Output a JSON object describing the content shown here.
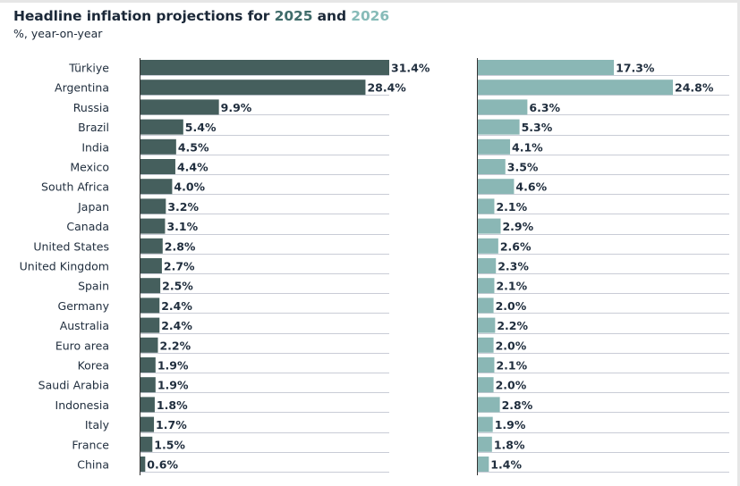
{
  "title": {
    "part1": "Headline inflation projections for ",
    "year1": "2025",
    "part2": " and ",
    "year2": "2026"
  },
  "subtitle": "%, year-on-year",
  "colors": {
    "series_2025": "#455f5d",
    "series_2026": "#8ab7b5",
    "year1_text": "#3f6b6a",
    "year2_text": "#86bbb8",
    "gridline": "#c9ccd6",
    "axis": "#333333"
  },
  "chart_data": {
    "type": "bar",
    "orientation": "horizontal",
    "categories": [
      "Türkiye",
      "Argentina",
      "Russia",
      "Brazil",
      "India",
      "Mexico",
      "South Africa",
      "Japan",
      "Canada",
      "United States",
      "United Kingdom",
      "Spain",
      "Germany",
      "Australia",
      "Euro area",
      "Korea",
      "Saudi Arabia",
      "Indonesia",
      "Italy",
      "France",
      "China"
    ],
    "series": [
      {
        "name": "2025",
        "values": [
          31.4,
          28.4,
          9.9,
          5.4,
          4.5,
          4.4,
          4.0,
          3.2,
          3.1,
          2.8,
          2.7,
          2.5,
          2.4,
          2.4,
          2.2,
          1.9,
          1.9,
          1.8,
          1.7,
          1.5,
          0.6
        ],
        "labels": [
          "31.4%",
          "28.4%",
          "9.9%",
          "5.4%",
          "4.5%",
          "4.4%",
          "4.0%",
          "3.2%",
          "3.1%",
          "2.8%",
          "2.7%",
          "2.5%",
          "2.4%",
          "2.4%",
          "2.2%",
          "1.9%",
          "1.9%",
          "1.8%",
          "1.7%",
          "1.5%",
          "0.6%"
        ]
      },
      {
        "name": "2026",
        "values": [
          17.3,
          24.8,
          6.3,
          5.3,
          4.1,
          3.5,
          4.6,
          2.1,
          2.9,
          2.6,
          2.3,
          2.1,
          2.0,
          2.2,
          2.0,
          2.1,
          2.0,
          2.8,
          1.9,
          1.8,
          1.4
        ],
        "labels": [
          "17.3%",
          "24.8%",
          "6.3%",
          "5.3%",
          "4.1%",
          "3.5%",
          "4.6%",
          "2.1%",
          "2.9%",
          "2.6%",
          "2.3%",
          "2.1%",
          "2.0%",
          "2.2%",
          "2.0%",
          "2.1%",
          "2.0%",
          "2.8%",
          "1.9%",
          "1.8%",
          "1.4%"
        ]
      }
    ],
    "grid": true
  }
}
